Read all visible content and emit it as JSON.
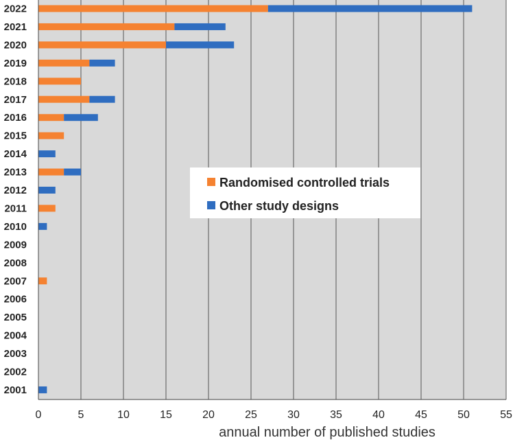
{
  "chart_data": {
    "type": "bar",
    "orientation": "horizontal",
    "stacked": true,
    "title": "",
    "xlabel": "annual number of published studies",
    "ylabel": "",
    "xlim": [
      0,
      55
    ],
    "xticks": [
      0,
      5,
      10,
      15,
      20,
      25,
      30,
      35,
      40,
      45,
      50,
      55
    ],
    "grid": true,
    "legend_position": "center-right",
    "categories": [
      "2022",
      "2021",
      "2020",
      "2019",
      "2018",
      "2017",
      "2016",
      "2015",
      "2014",
      "2013",
      "2012",
      "2011",
      "2010",
      "2009",
      "2008",
      "2007",
      "2006",
      "2005",
      "2004",
      "2003",
      "2002",
      "2001"
    ],
    "series": [
      {
        "name": "Randomised controlled trials",
        "color": "#f58231",
        "values": [
          27,
          16,
          15,
          6,
          5,
          6,
          3,
          3,
          0,
          3,
          0,
          2,
          0,
          0,
          0,
          1,
          0,
          0,
          0,
          0,
          0,
          0
        ]
      },
      {
        "name": "Other study designs",
        "color": "#2f6dc0",
        "values": [
          24,
          6,
          8,
          3,
          0,
          3,
          4,
          0,
          2,
          2,
          2,
          0,
          1,
          0,
          0,
          0,
          0,
          0,
          0,
          0,
          0,
          1
        ]
      }
    ],
    "background_color": "#d9d9d9",
    "gridline_color": "#555555"
  }
}
